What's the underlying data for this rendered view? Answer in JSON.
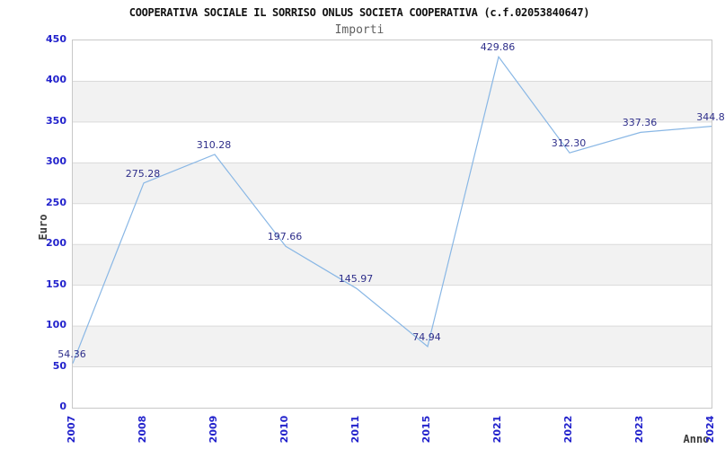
{
  "chart_data": {
    "type": "line",
    "title": "COOPERATIVA SOCIALE IL SORRISO ONLUS SOCIETA COOPERATIVA (c.f.02053840647)",
    "subtitle": "Importi",
    "xlabel": "Anno",
    "ylabel": "Euro",
    "categories": [
      "2007",
      "2008",
      "2009",
      "2010",
      "2011",
      "2015",
      "2021",
      "2022",
      "2023",
      "2024"
    ],
    "series": [
      {
        "name": "Importi",
        "values": [
          54.36,
          275.28,
          310.28,
          197.66,
          145.97,
          74.94,
          429.86,
          312.3,
          337.36,
          344.8
        ],
        "point_labels": [
          "54.36",
          "275.28",
          "310.28",
          "197.66",
          "145.97",
          "74.94",
          "429.86",
          "312.30",
          "337.36",
          "344.8"
        ]
      }
    ],
    "ylim": [
      0,
      450
    ],
    "ytick_step": 50,
    "ytick_labels": [
      "0",
      "50",
      "100",
      "150",
      "200",
      "250",
      "300",
      "350",
      "400",
      "450"
    ],
    "grid": true,
    "alternating_bands": true,
    "legend_position": "none",
    "colors": {
      "line": "#89b7e5",
      "point_label": "#2e2e8a",
      "tick_label": "#2222cc",
      "grid_line": "#dadada",
      "band_fill": "#f2f2f2",
      "plot_border": "#c8c8c8",
      "title": "#111111",
      "subtitle": "#5f5f5f",
      "axis_title": "#3a3a3a"
    }
  }
}
